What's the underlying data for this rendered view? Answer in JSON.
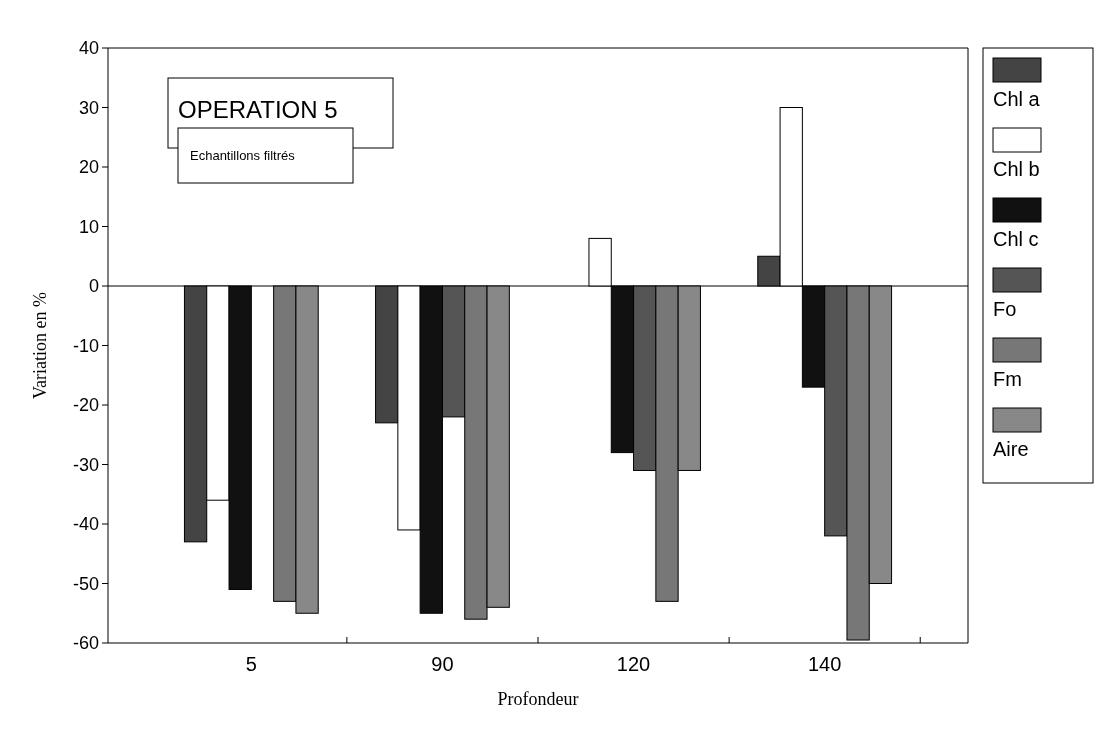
{
  "chart_data": {
    "type": "bar",
    "xlabel": "Profondeur",
    "ylabel": "Variation en %",
    "categories": [
      "5",
      "90",
      "120",
      "140"
    ],
    "series": [
      {
        "name": "Chl a",
        "color": "#444444",
        "values": [
          -43,
          -23,
          null,
          5
        ]
      },
      {
        "name": "Chl b",
        "color": "#ffffff",
        "values": [
          -36,
          -41,
          8,
          30
        ]
      },
      {
        "name": "Chl c",
        "color": "#111111",
        "values": [
          -51,
          -55,
          -28,
          -17
        ]
      },
      {
        "name": "Fo",
        "color": "#555555",
        "values": [
          null,
          -22,
          -31,
          -42
        ]
      },
      {
        "name": "Fm",
        "color": "#777777",
        "values": [
          -53,
          -56,
          -53,
          -59.5
        ]
      },
      {
        "name": "Aire",
        "color": "#888888",
        "values": [
          -55,
          -54,
          -31,
          -50
        ]
      }
    ],
    "ylim": [
      -60,
      40
    ],
    "yticks": [
      -60,
      -50,
      -40,
      -30,
      -20,
      -10,
      0,
      10,
      20,
      30,
      40
    ],
    "ref_lines": [
      {
        "axis": "y",
        "value": 0
      }
    ],
    "legend": "right",
    "annotations": [
      "OPERATION 5",
      "Echantillons filtrés"
    ]
  }
}
